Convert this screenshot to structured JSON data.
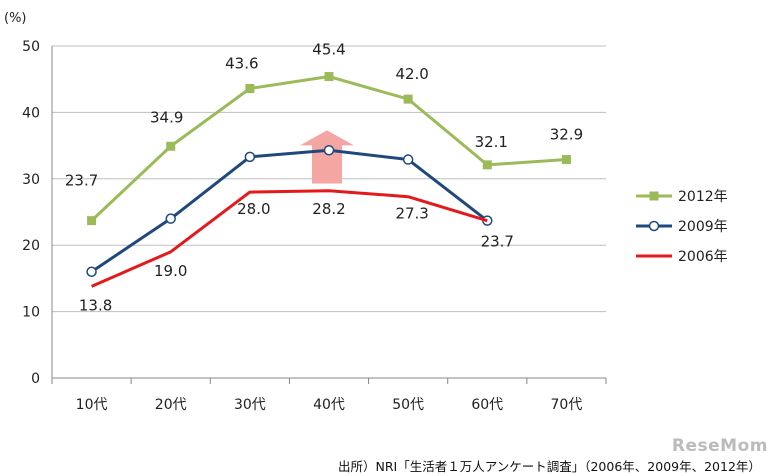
{
  "chart_data": {
    "type": "line",
    "title": "",
    "ylabel": "(%)",
    "xlabel": "",
    "ylim": [
      0,
      50
    ],
    "yticks": [
      0,
      10,
      20,
      30,
      40,
      50
    ],
    "categories": [
      "10代",
      "20代",
      "30代",
      "40代",
      "50代",
      "60代",
      "70代"
    ],
    "grid": true,
    "legend_position": "right",
    "series": [
      {
        "name": "2012年",
        "color": "#9bbb59",
        "marker": "square",
        "values": [
          23.7,
          34.9,
          43.6,
          45.4,
          42.0,
          32.1,
          32.9
        ],
        "labels": [
          "23.7",
          "34.9",
          "43.6",
          "45.4",
          "42.0",
          "32.1",
          "32.9"
        ]
      },
      {
        "name": "2009年",
        "color": "#1f497d",
        "marker": "circle",
        "values": [
          16.0,
          24.0,
          33.3,
          34.3,
          32.9,
          23.7,
          null
        ],
        "labels": []
      },
      {
        "name": "2006年",
        "color": "#e31a1c",
        "marker": "none",
        "values": [
          13.8,
          19.0,
          28.0,
          28.2,
          27.3,
          23.7,
          null
        ],
        "labels": [
          "13.8",
          "19.0",
          "28.0",
          "28.2",
          "27.3",
          "23.7",
          ""
        ]
      }
    ],
    "annotation": "up-arrow"
  },
  "source": "出所）NRI「生活者１万人アンケート調査」（2006年、2009年、2012年）",
  "watermark": "ReseMom"
}
